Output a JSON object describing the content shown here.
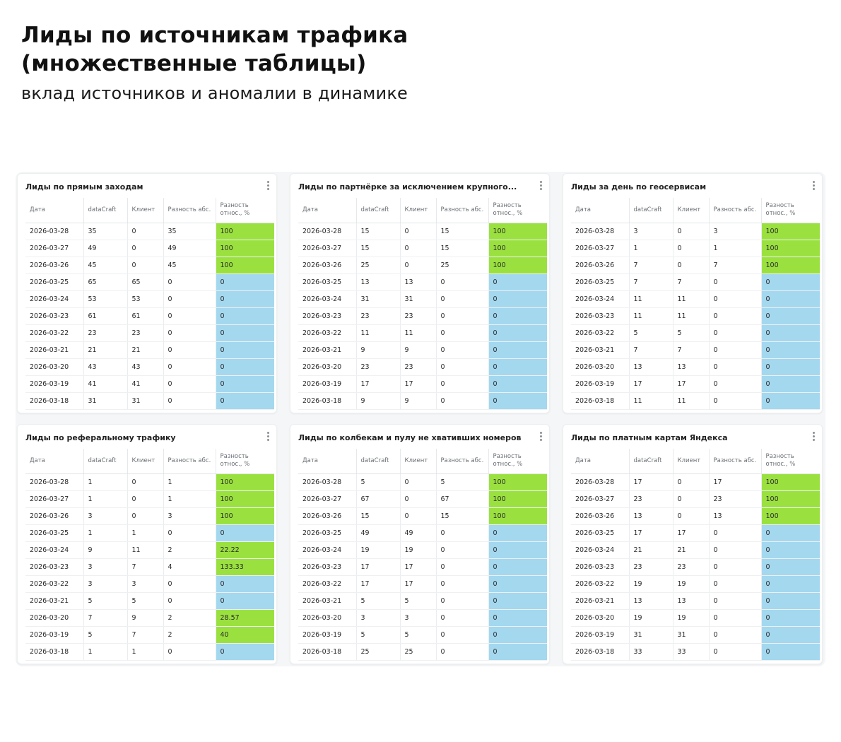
{
  "header": {
    "title_line1": "Лиды по источникам трафика",
    "title_line2": "(множественные таблицы)",
    "subtitle": "вклад источников и аномалии в динамике"
  },
  "colors": {
    "positive": "#9ae140",
    "zero": "#a4d8ef"
  },
  "columns": [
    "Дата",
    "dataCraft",
    "Клиент",
    "Разность абс.",
    "Разность относ., %"
  ],
  "cards": [
    {
      "title": "Лиды по прямым заходам",
      "rows": [
        [
          "2026-03-28",
          "35",
          "0",
          "35",
          "100"
        ],
        [
          "2026-03-27",
          "49",
          "0",
          "49",
          "100"
        ],
        [
          "2026-03-26",
          "45",
          "0",
          "45",
          "100"
        ],
        [
          "2026-03-25",
          "65",
          "65",
          "0",
          "0"
        ],
        [
          "2026-03-24",
          "53",
          "53",
          "0",
          "0"
        ],
        [
          "2026-03-23",
          "61",
          "61",
          "0",
          "0"
        ],
        [
          "2026-03-22",
          "23",
          "23",
          "0",
          "0"
        ],
        [
          "2026-03-21",
          "21",
          "21",
          "0",
          "0"
        ],
        [
          "2026-03-20",
          "43",
          "43",
          "0",
          "0"
        ],
        [
          "2026-03-19",
          "41",
          "41",
          "0",
          "0"
        ],
        [
          "2026-03-18",
          "31",
          "31",
          "0",
          "0"
        ]
      ]
    },
    {
      "title": "Лиды по партнёрке за исключением крупного...",
      "rows": [
        [
          "2026-03-28",
          "15",
          "0",
          "15",
          "100"
        ],
        [
          "2026-03-27",
          "15",
          "0",
          "15",
          "100"
        ],
        [
          "2026-03-26",
          "25",
          "0",
          "25",
          "100"
        ],
        [
          "2026-03-25",
          "13",
          "13",
          "0",
          "0"
        ],
        [
          "2026-03-24",
          "31",
          "31",
          "0",
          "0"
        ],
        [
          "2026-03-23",
          "23",
          "23",
          "0",
          "0"
        ],
        [
          "2026-03-22",
          "11",
          "11",
          "0",
          "0"
        ],
        [
          "2026-03-21",
          "9",
          "9",
          "0",
          "0"
        ],
        [
          "2026-03-20",
          "23",
          "23",
          "0",
          "0"
        ],
        [
          "2026-03-19",
          "17",
          "17",
          "0",
          "0"
        ],
        [
          "2026-03-18",
          "9",
          "9",
          "0",
          "0"
        ]
      ]
    },
    {
      "title": "Лиды за день по геосервисам",
      "rows": [
        [
          "2026-03-28",
          "3",
          "0",
          "3",
          "100"
        ],
        [
          "2026-03-27",
          "1",
          "0",
          "1",
          "100"
        ],
        [
          "2026-03-26",
          "7",
          "0",
          "7",
          "100"
        ],
        [
          "2026-03-25",
          "7",
          "7",
          "0",
          "0"
        ],
        [
          "2026-03-24",
          "11",
          "11",
          "0",
          "0"
        ],
        [
          "2026-03-23",
          "11",
          "11",
          "0",
          "0"
        ],
        [
          "2026-03-22",
          "5",
          "5",
          "0",
          "0"
        ],
        [
          "2026-03-21",
          "7",
          "7",
          "0",
          "0"
        ],
        [
          "2026-03-20",
          "13",
          "13",
          "0",
          "0"
        ],
        [
          "2026-03-19",
          "17",
          "17",
          "0",
          "0"
        ],
        [
          "2026-03-18",
          "11",
          "11",
          "0",
          "0"
        ]
      ]
    },
    {
      "title": "Лиды по реферальному трафику",
      "rows": [
        [
          "2026-03-28",
          "1",
          "0",
          "1",
          "100"
        ],
        [
          "2026-03-27",
          "1",
          "0",
          "1",
          "100"
        ],
        [
          "2026-03-26",
          "3",
          "0",
          "3",
          "100"
        ],
        [
          "2026-03-25",
          "1",
          "1",
          "0",
          "0"
        ],
        [
          "2026-03-24",
          "9",
          "11",
          "2",
          "22.22"
        ],
        [
          "2026-03-23",
          "3",
          "7",
          "4",
          "133.33"
        ],
        [
          "2026-03-22",
          "3",
          "3",
          "0",
          "0"
        ],
        [
          "2026-03-21",
          "5",
          "5",
          "0",
          "0"
        ],
        [
          "2026-03-20",
          "7",
          "9",
          "2",
          "28.57"
        ],
        [
          "2026-03-19",
          "5",
          "7",
          "2",
          "40"
        ],
        [
          "2026-03-18",
          "1",
          "1",
          "0",
          "0"
        ]
      ]
    },
    {
      "title": "Лиды по колбекам и пулу не хвативших номеров",
      "rows": [
        [
          "2026-03-28",
          "5",
          "0",
          "5",
          "100"
        ],
        [
          "2026-03-27",
          "67",
          "0",
          "67",
          "100"
        ],
        [
          "2026-03-26",
          "15",
          "0",
          "15",
          "100"
        ],
        [
          "2026-03-25",
          "49",
          "49",
          "0",
          "0"
        ],
        [
          "2026-03-24",
          "19",
          "19",
          "0",
          "0"
        ],
        [
          "2026-03-23",
          "17",
          "17",
          "0",
          "0"
        ],
        [
          "2026-03-22",
          "17",
          "17",
          "0",
          "0"
        ],
        [
          "2026-03-21",
          "5",
          "5",
          "0",
          "0"
        ],
        [
          "2026-03-20",
          "3",
          "3",
          "0",
          "0"
        ],
        [
          "2026-03-19",
          "5",
          "5",
          "0",
          "0"
        ],
        [
          "2026-03-18",
          "25",
          "25",
          "0",
          "0"
        ]
      ]
    },
    {
      "title": "Лиды по платным картам Яндекса",
      "rows": [
        [
          "2026-03-28",
          "17",
          "0",
          "17",
          "100"
        ],
        [
          "2026-03-27",
          "23",
          "0",
          "23",
          "100"
        ],
        [
          "2026-03-26",
          "13",
          "0",
          "13",
          "100"
        ],
        [
          "2026-03-25",
          "17",
          "17",
          "0",
          "0"
        ],
        [
          "2026-03-24",
          "21",
          "21",
          "0",
          "0"
        ],
        [
          "2026-03-23",
          "23",
          "23",
          "0",
          "0"
        ],
        [
          "2026-03-22",
          "19",
          "19",
          "0",
          "0"
        ],
        [
          "2026-03-21",
          "13",
          "13",
          "0",
          "0"
        ],
        [
          "2026-03-20",
          "19",
          "19",
          "0",
          "0"
        ],
        [
          "2026-03-19",
          "31",
          "31",
          "0",
          "0"
        ],
        [
          "2026-03-18",
          "33",
          "33",
          "0",
          "0"
        ]
      ]
    }
  ]
}
